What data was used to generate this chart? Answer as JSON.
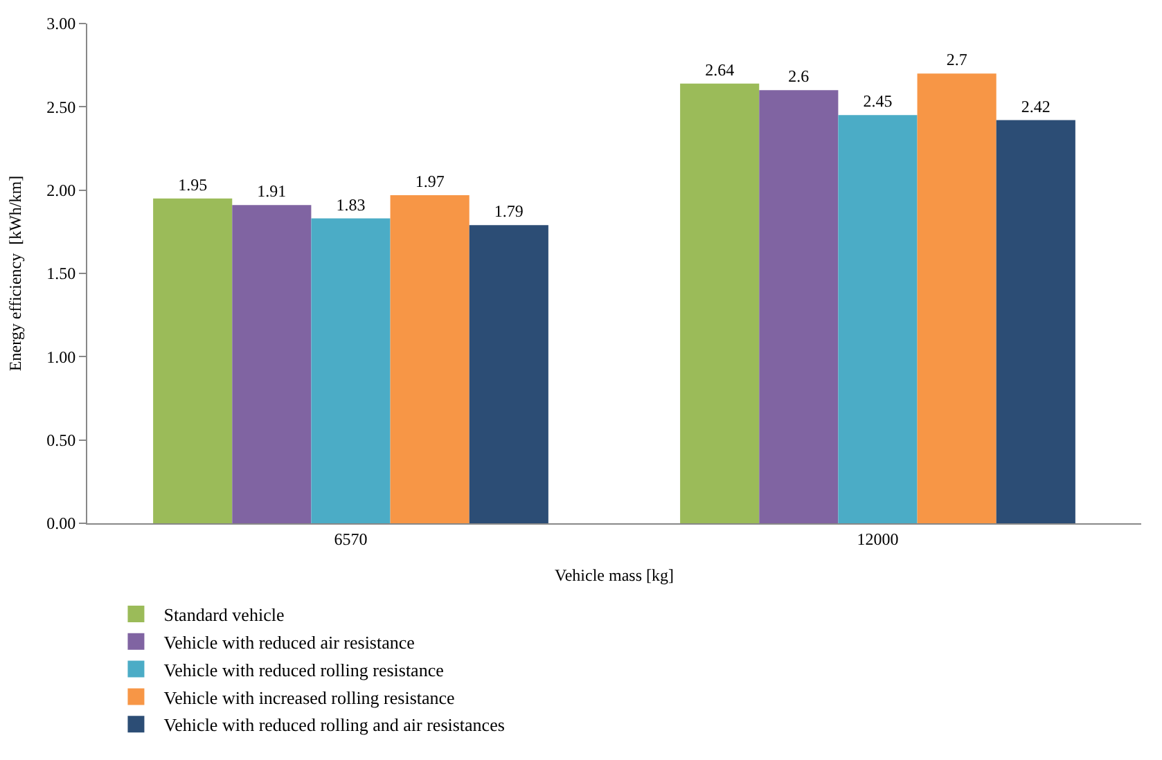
{
  "chart_data": {
    "type": "bar",
    "xlabel": "Vehicle mass [kg]",
    "ylabel": "Energy efficiency  [kWh/km]",
    "categories": [
      "6570",
      "12000"
    ],
    "series": [
      {
        "name": "Standard vehicle",
        "color": "#9bbb59",
        "values": [
          1.95,
          2.64
        ]
      },
      {
        "name": "Vehicle with reduced air resistance",
        "color": "#8064a2",
        "values": [
          1.91,
          2.6
        ]
      },
      {
        "name": "Vehicle with reduced rolling resistance",
        "color": "#4bacc6",
        "values": [
          1.83,
          2.45
        ]
      },
      {
        "name": "Vehicle with increased rolling resistance",
        "color": "#f79646",
        "values": [
          1.97,
          2.7
        ]
      },
      {
        "name": "Vehicle with reduced rolling and air resistances",
        "color": "#2c4d75",
        "values": [
          1.79,
          2.42
        ]
      }
    ],
    "ylim": [
      0,
      3
    ],
    "yticks": [
      {
        "value": 0,
        "label": "0.00"
      },
      {
        "value": 0.5,
        "label": "0.50"
      },
      {
        "value": 1,
        "label": "1.00"
      },
      {
        "value": 1.5,
        "label": "1.50"
      },
      {
        "value": 2,
        "label": "2.00"
      },
      {
        "value": 2.5,
        "label": "2.50"
      },
      {
        "value": 3,
        "label": "3.00"
      }
    ],
    "data_labels": true,
    "legend": "bottom"
  }
}
